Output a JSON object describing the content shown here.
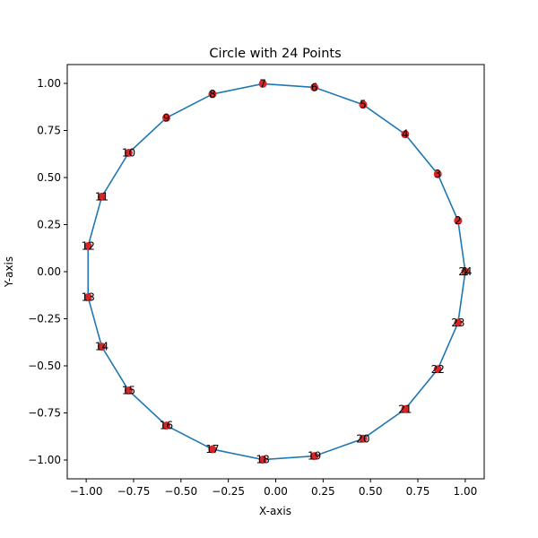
{
  "chart_data": {
    "type": "line",
    "title": "Circle with 24 Points",
    "xlabel": "X-axis",
    "ylabel": "Y-axis",
    "xlim": [
      -1.1,
      1.1
    ],
    "ylim": [
      -1.1,
      1.1
    ],
    "xticks": [
      -1.0,
      -0.75,
      -0.5,
      -0.25,
      0.0,
      0.25,
      0.5,
      0.75,
      1.0
    ],
    "xtick_labels": [
      "−1.00",
      "−0.75",
      "−0.50",
      "−0.25",
      "0.00",
      "0.25",
      "0.50",
      "0.75",
      "1.00"
    ],
    "yticks": [
      -1.0,
      -0.75,
      -0.5,
      -0.25,
      0.0,
      0.25,
      0.5,
      0.75,
      1.0
    ],
    "ytick_labels": [
      "−1.00",
      "−0.75",
      "−0.50",
      "−0.25",
      "0.00",
      "0.25",
      "0.50",
      "0.75",
      "1.00"
    ],
    "grid": false,
    "line_color": "#1f77b4",
    "marker_color": "#d62728",
    "series": [
      {
        "x": [
          1.0,
          0.962,
          0.855,
          0.683,
          0.461,
          0.204,
          -0.068,
          -0.334,
          -0.577,
          -0.776,
          -0.918,
          -0.99,
          -0.99,
          -0.918,
          -0.776,
          -0.577,
          -0.334,
          -0.068,
          0.204,
          0.461,
          0.683,
          0.855,
          0.962,
          1.0
        ],
        "y": [
          0.0,
          0.271,
          0.518,
          0.73,
          0.887,
          0.979,
          0.998,
          0.943,
          0.817,
          0.631,
          0.398,
          0.136,
          -0.136,
          -0.398,
          -0.631,
          -0.817,
          -0.943,
          -0.998,
          -0.979,
          -0.887,
          -0.73,
          -0.518,
          -0.271,
          0.0
        ],
        "labels": [
          "1",
          "2",
          "3",
          "4",
          "5",
          "6",
          "7",
          "8",
          "9",
          "10",
          "11",
          "12",
          "13",
          "14",
          "15",
          "16",
          "17",
          "18",
          "19",
          "20",
          "21",
          "22",
          "23",
          "24"
        ]
      }
    ]
  }
}
